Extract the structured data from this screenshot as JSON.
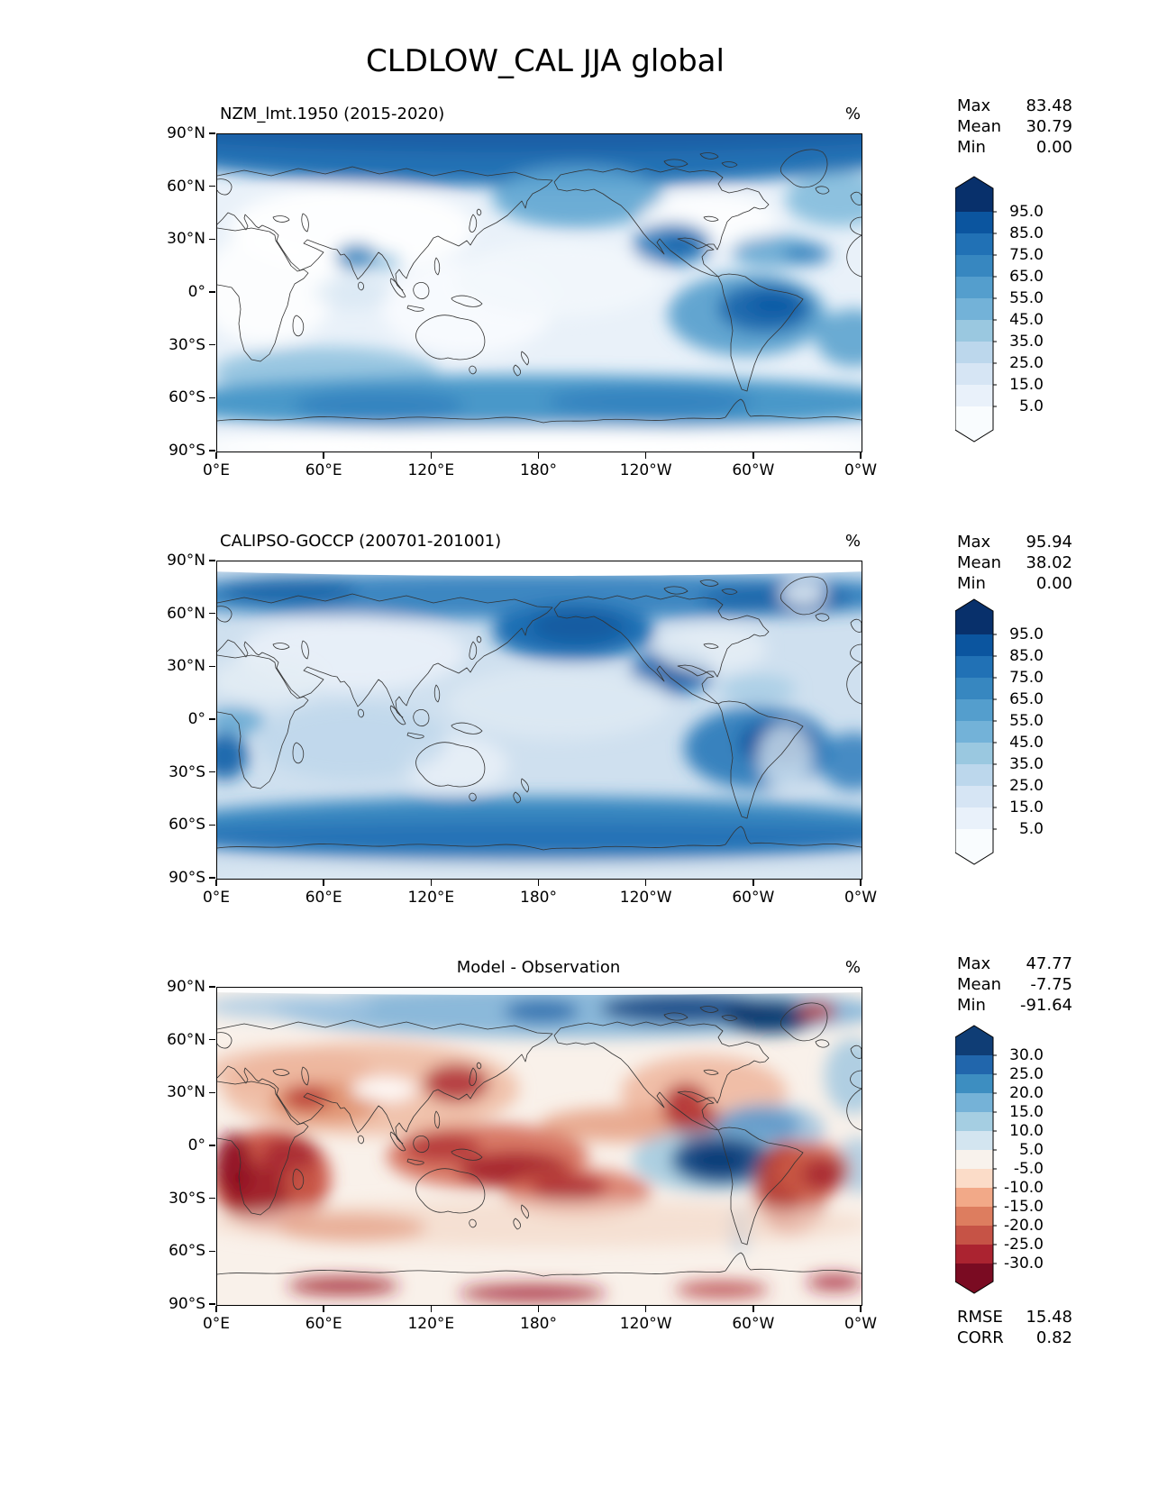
{
  "page_title": "CLDLOW_CAL JJA global",
  "chart_data": [
    {
      "type": "heatmap",
      "id": "model",
      "title": "NZM_lmt.1950 (2015-2020)",
      "title_align": "left",
      "units": "%",
      "colormap": "Blues",
      "stats": [
        [
          "Max",
          "83.48"
        ],
        [
          "Mean",
          "30.79"
        ],
        [
          "Min",
          "0.00"
        ]
      ],
      "x_ticks": [
        "0°E",
        "60°E",
        "120°E",
        "180°",
        "120°W",
        "60°W",
        "0°W"
      ],
      "y_ticks": [
        "90°N",
        "60°N",
        "30°N",
        "0°",
        "30°S",
        "60°S",
        "90°S"
      ],
      "colorbar": {
        "extend": "both",
        "ticks": [
          "95.0",
          "85.0",
          "75.0",
          "65.0",
          "55.0",
          "45.0",
          "35.0",
          "25.0",
          "15.0",
          "5.0"
        ],
        "colors": [
          "#08306b",
          "#0b559f",
          "#2171b5",
          "#3787c0",
          "#549ecd",
          "#73b2d8",
          "#9ac8e0",
          "#bcd7ec",
          "#d6e5f4",
          "#e9f1fa",
          "#f9fcfe"
        ]
      }
    },
    {
      "type": "heatmap",
      "id": "observation",
      "title": "CALIPSO-GOCCP (200701-201001)",
      "title_align": "left",
      "units": "%",
      "colormap": "Blues",
      "stats": [
        [
          "Max",
          "95.94"
        ],
        [
          "Mean",
          "38.02"
        ],
        [
          "Min",
          "0.00"
        ]
      ],
      "x_ticks": [
        "0°E",
        "60°E",
        "120°E",
        "180°",
        "120°W",
        "60°W",
        "0°W"
      ],
      "y_ticks": [
        "90°N",
        "60°N",
        "30°N",
        "0°",
        "30°S",
        "60°S",
        "90°S"
      ],
      "colorbar": {
        "extend": "both",
        "ticks": [
          "95.0",
          "85.0",
          "75.0",
          "65.0",
          "55.0",
          "45.0",
          "35.0",
          "25.0",
          "15.0",
          "5.0"
        ],
        "colors": [
          "#08306b",
          "#0b559f",
          "#2171b5",
          "#3787c0",
          "#549ecd",
          "#73b2d8",
          "#9ac8e0",
          "#bcd7ec",
          "#d6e5f4",
          "#e9f1fa",
          "#f9fcfe"
        ]
      }
    },
    {
      "type": "heatmap",
      "id": "difference",
      "title": "Model - Observation",
      "title_align": "center",
      "units": "%",
      "colormap": "RdBu",
      "stats": [
        [
          "Max",
          "47.77"
        ],
        [
          "Mean",
          "-7.75"
        ],
        [
          "Min",
          "-91.64"
        ]
      ],
      "extra_stats": [
        [
          "RMSE",
          "15.48"
        ],
        [
          "CORR",
          "0.82"
        ]
      ],
      "x_ticks": [
        "0°E",
        "60°E",
        "120°E",
        "180°",
        "120°W",
        "60°W",
        "0°W"
      ],
      "y_ticks": [
        "90°N",
        "60°N",
        "30°N",
        "0°",
        "30°S",
        "60°S",
        "90°S"
      ],
      "colorbar": {
        "extend": "both",
        "ticks": [
          "30.0",
          "25.0",
          "20.0",
          "15.0",
          "10.0",
          "5.0",
          "-5.0",
          "-10.0",
          "-15.0",
          "-20.0",
          "-25.0",
          "-30.0"
        ],
        "colors": [
          "#0f3d75",
          "#2166ac",
          "#3d8ec1",
          "#75b2d7",
          "#a5cee2",
          "#d3e5f0",
          "#f8f2ec",
          "#fbdcc8",
          "#f2a988",
          "#dd7d5f",
          "#c65346",
          "#ab2330",
          "#7a0b22"
        ]
      }
    }
  ]
}
